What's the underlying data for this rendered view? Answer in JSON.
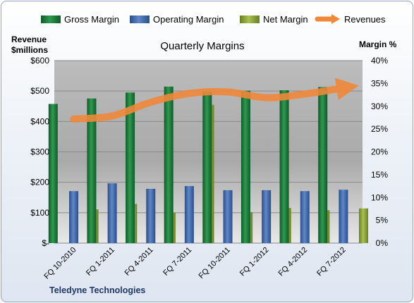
{
  "chart_data": {
    "type": "bar",
    "title": "Quarterly Margins",
    "company": "Teledyne Technologies",
    "left_axis_label_lines": [
      "Revenue",
      "$millions"
    ],
    "right_axis_label": "Margin %",
    "categories": [
      "FQ 10-2010",
      "FQ 1-2011",
      "FQ 4-2011",
      "FQ 7-2011",
      "FQ 10-2011",
      "FQ 1-2012",
      "FQ 4-2012",
      "FQ 7-2012"
    ],
    "series": [
      {
        "name": "Gross Margin",
        "kind": "bar",
        "axis": "right",
        "color": "#1e7a3c",
        "values": [
          30.5,
          31.7,
          33.0,
          34.3,
          33.2,
          33.4,
          33.5,
          34.2
        ]
      },
      {
        "name": "Operating Margin",
        "kind": "bar",
        "axis": "right",
        "color": "#3f68a8",
        "values": [
          11.4,
          13.1,
          11.9,
          12.5,
          11.6,
          11.6,
          11.4,
          11.7
        ]
      },
      {
        "name": "Net Margin",
        "kind": "bar",
        "axis": "right",
        "color": "#8ea43c",
        "values": [
          7.4,
          8.6,
          6.7,
          30.3,
          6.8,
          7.7,
          7.2,
          7.6
        ]
      },
      {
        "name": "Revenues",
        "kind": "line",
        "axis": "left",
        "color": "#f0883a",
        "values": [
          408,
          418,
          463,
          492,
          497,
          478,
          490,
          510
        ]
      }
    ],
    "left_axis": {
      "min": 0,
      "max": 600,
      "step": 100,
      "tick_labels": [
        "$-",
        "$100",
        "$200",
        "$300",
        "$400",
        "$500",
        "$600"
      ]
    },
    "right_axis": {
      "min": 0,
      "max": 40,
      "step": 5,
      "tick_labels": [
        "0%",
        "5%",
        "10%",
        "15%",
        "20%",
        "25%",
        "30%",
        "35%",
        "40%"
      ]
    },
    "legend_position": "top",
    "grid": true
  }
}
